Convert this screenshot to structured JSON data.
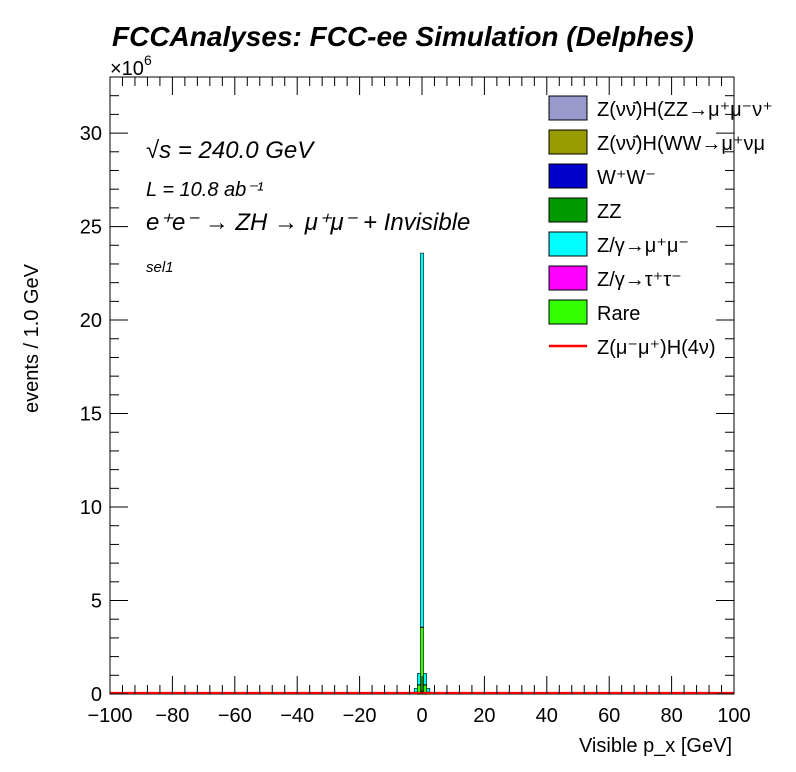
{
  "chart_data": {
    "type": "bar",
    "title": "FCCAnalyses: FCC-ee Simulation (Delphes)",
    "xlabel": "Visible p_x [GeV]",
    "ylabel": "events / 1.0 GeV",
    "y_multiplier": "×10^6",
    "xlim": [
      -100,
      100
    ],
    "ylim": [
      0,
      33
    ],
    "x_ticks": [
      "−100",
      "−80",
      "−60",
      "−40",
      "−20",
      "0",
      "20",
      "40",
      "60",
      "80",
      "100"
    ],
    "y_ticks": [
      "0",
      "5",
      "10",
      "15",
      "20",
      "25",
      "30"
    ],
    "stacked": true,
    "bin_width": 1.0,
    "annotations": {
      "energy": "√s = 240.0 GeV",
      "lumi": "L = 10.8 ab⁻¹",
      "process": "e⁺e⁻ → ZH → μ⁺μ⁻ + Invisible",
      "selection": "sel1"
    },
    "legend_position": "top-right",
    "series": [
      {
        "name": "Z(νν̄)H(ZZ→μ⁺μ⁻ν⁺",
        "color": "#9999cc",
        "x": [
          -1,
          0,
          1
        ],
        "values": [
          0.01,
          0.02,
          0.01
        ]
      },
      {
        "name": "Z(νν̄)H(WW→μ⁺νμ",
        "color": "#999900",
        "x": [
          -1,
          0,
          1
        ],
        "values": [
          0.01,
          0.02,
          0.01
        ]
      },
      {
        "name": "W⁺W⁻",
        "color": "#0000cc",
        "x": [
          -1,
          0,
          1
        ],
        "values": [
          0.02,
          0.04,
          0.02
        ]
      },
      {
        "name": "ZZ",
        "color": "#009900",
        "x": [
          -1,
          0,
          1
        ],
        "values": [
          0.05,
          0.08,
          0.05
        ]
      },
      {
        "name": "Rare",
        "color": "#33ff00",
        "x": [
          -2,
          -1,
          0,
          1,
          2
        ],
        "values": [
          0.1,
          0.4,
          3.4,
          0.4,
          0.1
        ]
      },
      {
        "name": "Z/γ→τ⁺τ⁻",
        "color": "#ff00ff",
        "x": [
          -1,
          0,
          1
        ],
        "values": [
          0.01,
          0.02,
          0.01
        ]
      },
      {
        "name": "Z/γ→μ⁺μ⁻",
        "color": "#00ffff",
        "x": [
          -6,
          -5,
          -4,
          -3,
          -2,
          -1,
          0,
          1,
          2,
          3,
          4,
          5,
          6
        ],
        "values": [
          0.02,
          0.03,
          0.05,
          0.08,
          0.2,
          0.6,
          20.0,
          0.6,
          0.2,
          0.08,
          0.05,
          0.03,
          0.02
        ]
      },
      {
        "name": "Z(μ⁻μ⁺)H(4ν)",
        "color": "#ff0000",
        "style": "line",
        "values_note": "",
        "x": [
          -100,
          100
        ],
        "values": [
          0.01,
          0.01
        ]
      }
    ]
  }
}
